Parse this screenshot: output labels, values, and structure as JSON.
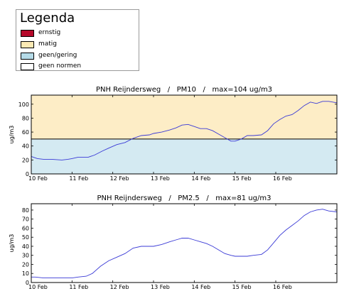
{
  "legend": {
    "title": "Legenda",
    "items": [
      {
        "label": "ernstig",
        "color": "#b5082a"
      },
      {
        "label": "matig",
        "color": "#fbe9b4"
      },
      {
        "label": "geen/gering",
        "color": "#b5dbe8"
      },
      {
        "label": "geen normen",
        "color": "#ffffff"
      }
    ]
  },
  "chart_data": [
    {
      "type": "line",
      "title": "PNH Reijndersweg   /   PM10   /   max=104 ug/m3",
      "ylabel": "ug/m3",
      "xlim": [
        0,
        7.5
      ],
      "ylim": [
        0,
        113
      ],
      "yticks": [
        0,
        20,
        40,
        60,
        80,
        100
      ],
      "xticks": [
        {
          "x": 0,
          "label": "10 Feb"
        },
        {
          "x": 1,
          "label": "11 Feb"
        },
        {
          "x": 2,
          "label": "12 Feb"
        },
        {
          "x": 3,
          "label": "13 Feb"
        },
        {
          "x": 4,
          "label": "14 Feb"
        },
        {
          "x": 5,
          "label": "15 Feb"
        },
        {
          "x": 6,
          "label": "16 Feb"
        }
      ],
      "bands": [
        {
          "from": 0,
          "to": 50,
          "color": "#d4eaf2"
        },
        {
          "from": 50,
          "to": 113,
          "color": "#fdedc6"
        }
      ],
      "threshold": 50,
      "line_color": "#3a3ad6",
      "series": [
        {
          "x": [
            0,
            0.15,
            0.3,
            0.5,
            0.75,
            0.9,
            1.0,
            1.15,
            1.4,
            1.55,
            1.75,
            1.9,
            2.1,
            2.3,
            2.5,
            2.7,
            2.9,
            3.0,
            3.2,
            3.4,
            3.55,
            3.7,
            3.85,
            4.0,
            4.15,
            4.3,
            4.45,
            4.6,
            4.75,
            4.9,
            5.0,
            5.15,
            5.3,
            5.45,
            5.65,
            5.8,
            5.95,
            6.1,
            6.25,
            6.4,
            6.55,
            6.7,
            6.85,
            7.0,
            7.15,
            7.3,
            7.5
          ],
          "y": [
            25,
            22,
            21,
            21,
            20,
            21,
            22,
            24,
            24,
            27,
            33,
            37,
            42,
            45,
            51,
            55,
            56,
            58,
            60,
            63,
            66,
            70,
            71,
            68,
            65,
            65,
            62,
            57,
            52,
            47,
            47,
            50,
            55,
            55,
            56,
            62,
            72,
            78,
            83,
            85,
            91,
            98,
            103,
            101,
            104,
            104,
            102
          ]
        }
      ]
    },
    {
      "type": "line",
      "title": "PNH Reijndersweg   /   PM2.5   /   max=81 ug/m3",
      "ylabel": "ug/m3",
      "xlim": [
        0,
        7.5
      ],
      "ylim": [
        0,
        87
      ],
      "yticks": [
        0,
        10,
        20,
        30,
        40,
        50,
        60,
        70,
        80
      ],
      "xticks": [
        {
          "x": 0,
          "label": "10 Feb"
        },
        {
          "x": 1,
          "label": "11 Feb"
        },
        {
          "x": 2,
          "label": "12 Feb"
        },
        {
          "x": 3,
          "label": "13 Feb"
        },
        {
          "x": 4,
          "label": "14 Feb"
        },
        {
          "x": 5,
          "label": "15 Feb"
        },
        {
          "x": 6,
          "label": "16 Feb"
        }
      ],
      "bands": [],
      "line_color": "#3a3ad6",
      "series": [
        {
          "x": [
            0,
            0.1,
            0.3,
            0.5,
            0.7,
            0.9,
            1.0,
            1.15,
            1.35,
            1.5,
            1.7,
            1.9,
            2.1,
            2.3,
            2.5,
            2.7,
            2.9,
            3.0,
            3.2,
            3.4,
            3.55,
            3.7,
            3.85,
            4.0,
            4.15,
            4.3,
            4.45,
            4.6,
            4.75,
            4.9,
            5.0,
            5.15,
            5.3,
            5.45,
            5.65,
            5.8,
            5.95,
            6.1,
            6.25,
            6.4,
            6.55,
            6.7,
            6.85,
            7.0,
            7.15,
            7.3,
            7.5
          ],
          "y": [
            6,
            6,
            5,
            5,
            5,
            5,
            5,
            6,
            7,
            10,
            18,
            24,
            28,
            32,
            38,
            40,
            40,
            40,
            42,
            45,
            47,
            49,
            49,
            47,
            45,
            43,
            40,
            36,
            32,
            30,
            29,
            29,
            29,
            30,
            31,
            36,
            44,
            52,
            58,
            63,
            68,
            74,
            78,
            80,
            81,
            79,
            78
          ]
        }
      ]
    }
  ]
}
